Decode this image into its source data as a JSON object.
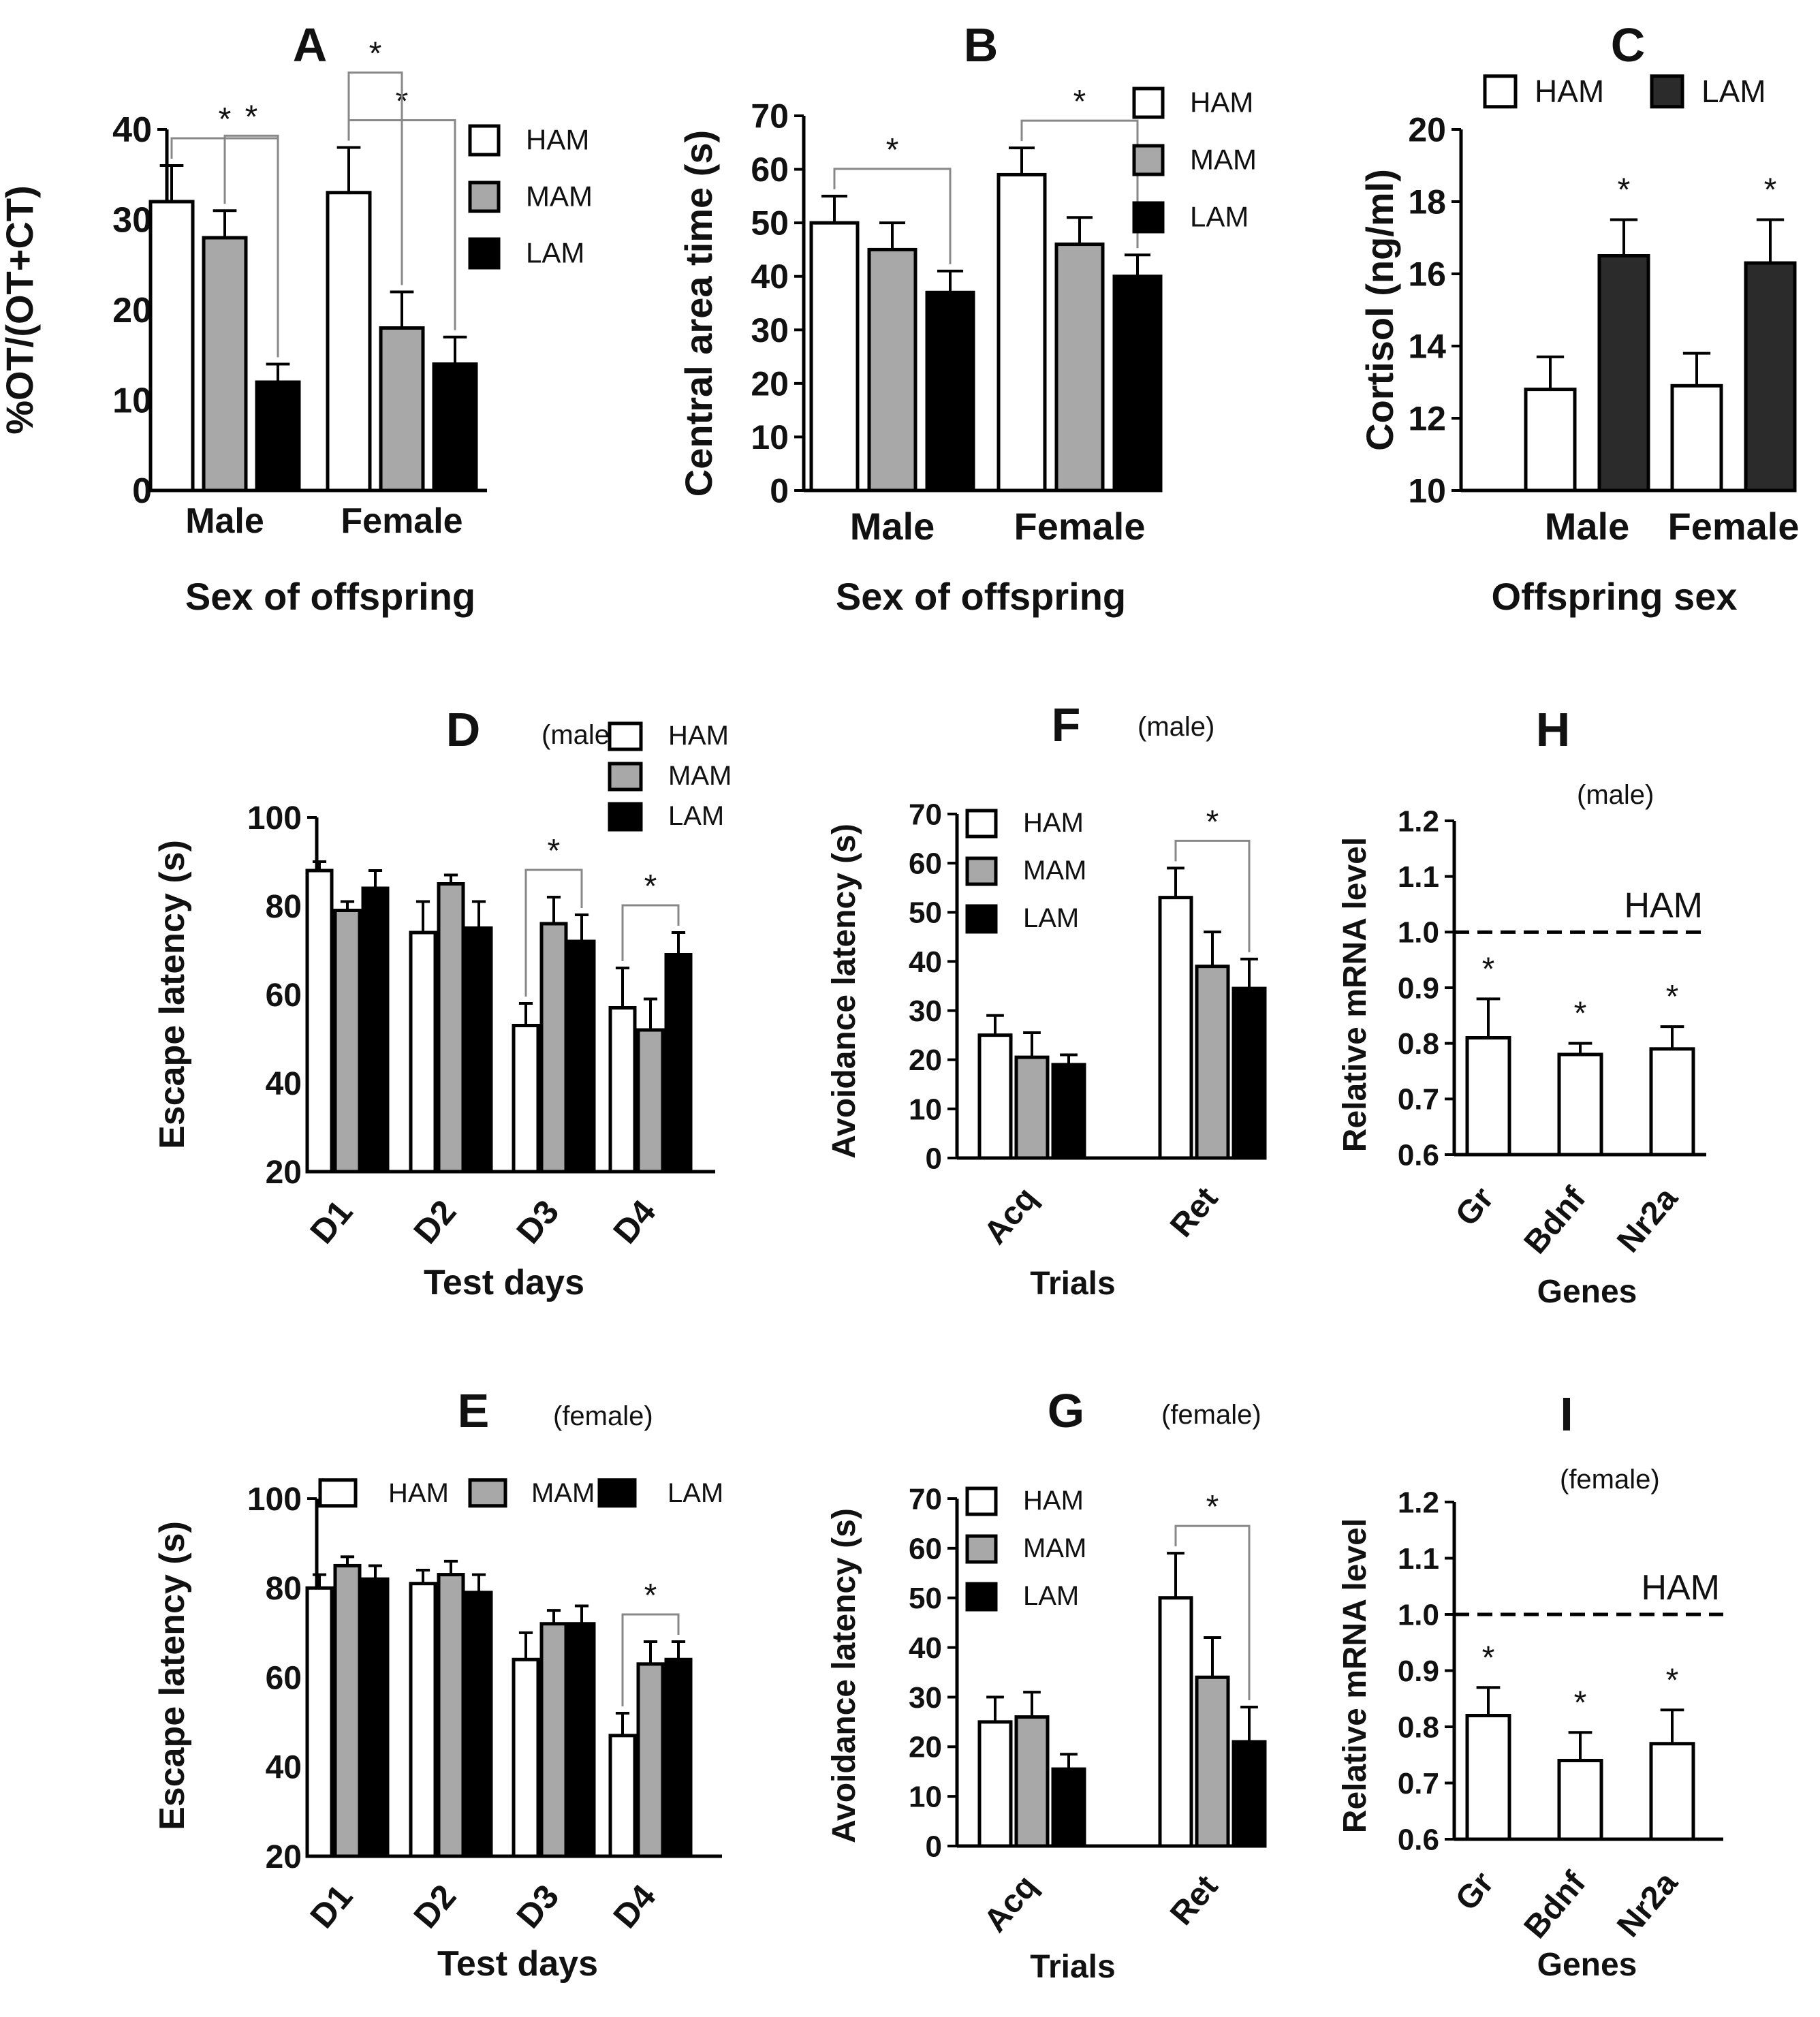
{
  "colors": {
    "HAM": "#ffffff",
    "MAM": "#a8a8a8",
    "LAM": "#000000",
    "LAM_C": "#2b2b2b",
    "stroke": "#000000"
  },
  "chart_data": [
    {
      "id": "A",
      "type": "bar",
      "letter": "A",
      "subtitle": "",
      "xlabel": "Sex of offspring",
      "ylabel": "%OT/(OT+CT)",
      "categories": [
        "Male",
        "Female"
      ],
      "ylim": [
        0,
        40
      ],
      "yticks": [
        0,
        10,
        20,
        30,
        40
      ],
      "series": [
        {
          "name": "HAM",
          "values": [
            32,
            33
          ],
          "errors": [
            4,
            5
          ]
        },
        {
          "name": "MAM",
          "values": [
            28,
            18
          ],
          "errors": [
            3,
            4
          ]
        },
        {
          "name": "LAM",
          "values": [
            12,
            14
          ],
          "errors": [
            2,
            3
          ]
        }
      ],
      "legend": [
        "HAM",
        "MAM",
        "LAM"
      ],
      "legend_position": "right",
      "annotations": [
        {
          "text": "*",
          "category": 0,
          "from": 0,
          "to": 2
        },
        {
          "text": "*",
          "category": 0,
          "from": 1,
          "to": 2
        },
        {
          "text": "*",
          "category": 1,
          "from": 0,
          "to": 2
        },
        {
          "text": "*",
          "category": 1,
          "from": 0,
          "to": 1
        }
      ]
    },
    {
      "id": "B",
      "type": "bar",
      "letter": "B",
      "subtitle": "",
      "xlabel": "Sex of offspring",
      "ylabel": "Central area time (s)",
      "categories": [
        "Male",
        "Female"
      ],
      "ylim": [
        0,
        70
      ],
      "yticks": [
        0,
        10,
        20,
        30,
        40,
        50,
        60,
        70
      ],
      "series": [
        {
          "name": "HAM",
          "values": [
            50,
            59
          ],
          "errors": [
            5,
            5
          ]
        },
        {
          "name": "MAM",
          "values": [
            45,
            46
          ],
          "errors": [
            5,
            5
          ]
        },
        {
          "name": "LAM",
          "values": [
            37,
            40
          ],
          "errors": [
            4,
            4
          ]
        }
      ],
      "legend": [
        "HAM",
        "MAM",
        "LAM"
      ],
      "legend_position": "top-right",
      "annotations": [
        {
          "text": "*",
          "category": 0,
          "from": 0,
          "to": 2
        },
        {
          "text": "*",
          "category": 1,
          "from": 0,
          "to": 2
        }
      ]
    },
    {
      "id": "C",
      "type": "bar",
      "letter": "C",
      "subtitle": "",
      "xlabel": "Offspring sex",
      "ylabel": "Cortisol (ng/ml)",
      "categories": [
        "Male",
        "Female"
      ],
      "ylim": [
        10,
        20
      ],
      "yticks": [
        10,
        12,
        14,
        16,
        18,
        20
      ],
      "series": [
        {
          "name": "HAM",
          "values": [
            12.8,
            12.9
          ],
          "errors": [
            0.9,
            0.9
          ]
        },
        {
          "name": "LAM",
          "values": [
            16.5,
            16.3
          ],
          "errors": [
            1.0,
            1.2
          ]
        }
      ],
      "legend": [
        "HAM",
        "LAM"
      ],
      "legend_position": "top",
      "stars": [
        "*",
        "*"
      ]
    },
    {
      "id": "D",
      "type": "bar",
      "letter": "D",
      "subtitle": "(male)",
      "xlabel": "Test days",
      "ylabel": "Escape latency (s)",
      "categories": [
        "D1",
        "D2",
        "D3",
        "D4"
      ],
      "ylim": [
        20,
        100
      ],
      "yticks": [
        20,
        40,
        60,
        80,
        100
      ],
      "series": [
        {
          "name": "HAM",
          "values": [
            88,
            74,
            53,
            57
          ],
          "errors": [
            2,
            7,
            5,
            9
          ]
        },
        {
          "name": "MAM",
          "values": [
            79,
            85,
            76,
            52
          ],
          "errors": [
            2,
            2,
            6,
            7
          ]
        },
        {
          "name": "LAM",
          "values": [
            84,
            75,
            72,
            69
          ],
          "errors": [
            4,
            6,
            6,
            5
          ]
        }
      ],
      "legend": [
        "HAM",
        "MAM",
        "LAM"
      ],
      "legend_position": "top-right",
      "annotations": [
        {
          "text": "*",
          "category": 2,
          "from": 0,
          "to": 2
        },
        {
          "text": "*",
          "category": 3,
          "from": 0,
          "to": 2
        }
      ]
    },
    {
      "id": "E",
      "type": "bar",
      "letter": "E",
      "subtitle": "(female)",
      "xlabel": "Test days",
      "ylabel": "Escape latency (s)",
      "categories": [
        "D1",
        "D2",
        "D3",
        "D4"
      ],
      "ylim": [
        20,
        100
      ],
      "yticks": [
        20,
        40,
        60,
        80,
        100
      ],
      "series": [
        {
          "name": "HAM",
          "values": [
            80,
            81,
            64,
            47
          ],
          "errors": [
            3,
            3,
            6,
            5
          ]
        },
        {
          "name": "MAM",
          "values": [
            85,
            83,
            72,
            63
          ],
          "errors": [
            2,
            3,
            3,
            5
          ]
        },
        {
          "name": "LAM",
          "values": [
            82,
            79,
            72,
            64
          ],
          "errors": [
            3,
            4,
            4,
            4
          ]
        }
      ],
      "legend": [
        "HAM",
        "MAM",
        "LAM"
      ],
      "legend_position": "top-inline",
      "annotations": [
        {
          "text": "*",
          "category": 3,
          "from": 0,
          "to": 2
        }
      ]
    },
    {
      "id": "F",
      "type": "bar",
      "letter": "F",
      "subtitle": "(male)",
      "xlabel": "Trials",
      "ylabel": "Avoidance latency (s)",
      "categories": [
        "Acq",
        "Ret"
      ],
      "ylim": [
        0,
        70
      ],
      "yticks": [
        0,
        10,
        20,
        30,
        40,
        50,
        60,
        70
      ],
      "series": [
        {
          "name": "HAM",
          "values": [
            25,
            53
          ],
          "errors": [
            4,
            6
          ]
        },
        {
          "name": "MAM",
          "values": [
            20.5,
            39
          ],
          "errors": [
            5,
            7
          ]
        },
        {
          "name": "LAM",
          "values": [
            19,
            34.5
          ],
          "errors": [
            2,
            6
          ]
        }
      ],
      "legend": [
        "HAM",
        "MAM",
        "LAM"
      ],
      "legend_position": "top-left",
      "annotations": [
        {
          "text": "*",
          "category": 1,
          "from": 0,
          "to": 2
        }
      ]
    },
    {
      "id": "G",
      "type": "bar",
      "letter": "G",
      "subtitle": "(female)",
      "xlabel": "Trials",
      "ylabel": "Avoidance latency (s)",
      "categories": [
        "Acq",
        "Ret"
      ],
      "ylim": [
        0,
        70
      ],
      "yticks": [
        0,
        10,
        20,
        30,
        40,
        50,
        60,
        70
      ],
      "series": [
        {
          "name": "HAM",
          "values": [
            25,
            50
          ],
          "errors": [
            5,
            9
          ]
        },
        {
          "name": "MAM",
          "values": [
            26,
            34
          ],
          "errors": [
            5,
            8
          ]
        },
        {
          "name": "LAM",
          "values": [
            15.5,
            21
          ],
          "errors": [
            3,
            7
          ]
        }
      ],
      "legend": [
        "HAM",
        "MAM",
        "LAM"
      ],
      "legend_position": "top-left",
      "annotations": [
        {
          "text": "*",
          "category": 1,
          "from": 0,
          "to": 2
        }
      ]
    },
    {
      "id": "H",
      "type": "bar",
      "letter": "H",
      "subtitle": "(male)",
      "xlabel": "Genes",
      "ylabel": "Relative mRNA level",
      "categories": [
        "Gr",
        "Bdnf",
        "Nr2a"
      ],
      "ylim": [
        0.6,
        1.2
      ],
      "yticks": [
        "0.6",
        "0.7",
        "0.8",
        "0.9",
        "1.0",
        "1.1",
        "1.2"
      ],
      "values": [
        0.81,
        0.78,
        0.79
      ],
      "errors": [
        0.07,
        0.02,
        0.04
      ],
      "reference": {
        "value": 1.0,
        "label": "HAM"
      },
      "stars": [
        "*",
        "*",
        "*"
      ]
    },
    {
      "id": "I",
      "type": "bar",
      "letter": "I",
      "subtitle": "(female)",
      "xlabel": "Genes",
      "ylabel": "Relative mRNA level",
      "categories": [
        "Gr",
        "Bdnf",
        "Nr2a"
      ],
      "ylim": [
        0.6,
        1.2
      ],
      "yticks": [
        "0.6",
        "0.7",
        "0.8",
        "0.9",
        "1.0",
        "1.1",
        "1.2"
      ],
      "values": [
        0.82,
        0.74,
        0.77
      ],
      "errors": [
        0.05,
        0.05,
        0.06
      ],
      "reference": {
        "value": 1.0,
        "label": "HAM"
      },
      "stars": [
        "*",
        "*",
        "*"
      ]
    }
  ]
}
